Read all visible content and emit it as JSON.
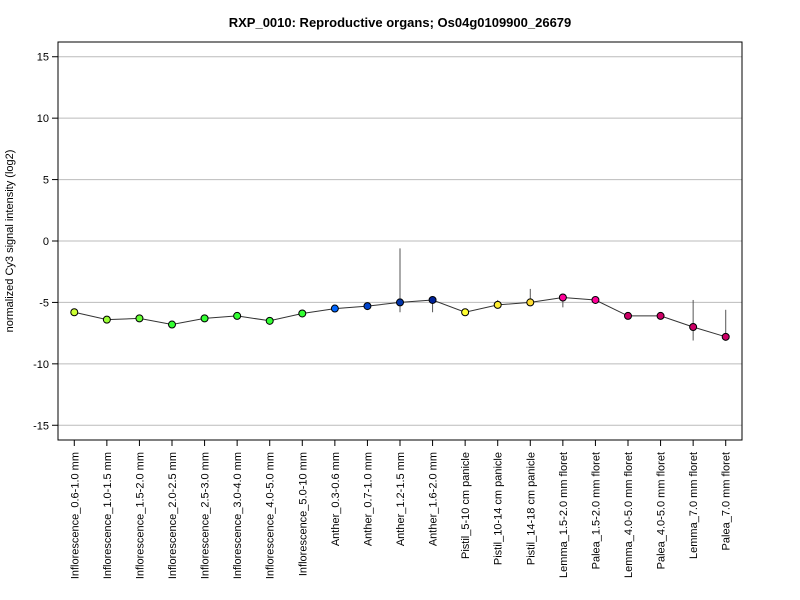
{
  "chart_data": {
    "type": "line",
    "title": "RXP_0010: Reproductive organs; Os04g0109900_26679",
    "xlabel": "",
    "ylabel": "normalized Cy3 signal intensity (log2)",
    "ylim": [
      -16.2,
      16.2
    ],
    "yticks": [
      -15,
      -10,
      -5,
      0,
      5,
      10,
      15
    ],
    "grid": true,
    "line_color": "#333333",
    "categories": [
      "Inflorescence_0.6-1.0 mm",
      "Inflorescence_1.0-1.5 mm",
      "Inflorescence_1.5-2.0 mm",
      "Inflorescence_2.0-2.5 mm",
      "Inflorescence_2.5-3.0 mm",
      "Inflorescence_3.0-4.0 mm",
      "Inflorescence_4.0-5.0 mm",
      "Inflorescence_5.0-10 mm",
      "Anther_0.3-0.6 mm",
      "Anther_0.7-1.0 mm",
      "Anther_1.2-1.5 mm",
      "Anther_1.6-2.0 mm",
      "Pistil_5-10 cm panicle",
      "Pistil_10-14 cm panicle",
      "Pistil_14-18 cm panicle",
      "Lemma_1.5-2.0 mm floret",
      "Palea_1.5-2.0 mm floret",
      "Lemma_4.0-5.0 mm floret",
      "Palea_4.0-5.0 mm floret",
      "Lemma_7.0 mm floret",
      "Palea_7.0 mm floret"
    ],
    "values": [
      -5.8,
      -6.4,
      -6.3,
      -6.8,
      -6.3,
      -6.1,
      -6.5,
      -5.9,
      -5.5,
      -5.3,
      -5.0,
      -4.8,
      -5.8,
      -5.2,
      -5.0,
      -4.6,
      -4.8,
      -6.1,
      -6.1,
      -7.0,
      -7.8
    ],
    "error_low": [
      -5.8,
      -6.4,
      -6.3,
      -6.8,
      -6.3,
      -6.1,
      -6.5,
      -5.9,
      -5.5,
      -5.5,
      -5.8,
      -5.8,
      -5.8,
      -5.5,
      -5.3,
      -5.4,
      -4.8,
      -6.1,
      -6.1,
      -8.1,
      -8.0
    ],
    "error_high": [
      -5.8,
      -6.4,
      -6.3,
      -6.8,
      -6.3,
      -6.1,
      -6.5,
      -5.9,
      -5.5,
      -5.2,
      -0.6,
      -4.7,
      -5.8,
      -4.8,
      -3.9,
      -4.5,
      -4.8,
      -6.1,
      -6.1,
      -4.8,
      -5.6
    ],
    "point_colors": [
      "#ccff33",
      "#99ff33",
      "#66ff33",
      "#33ff33",
      "#33ff33",
      "#33ff33",
      "#33ff33",
      "#33ff33",
      "#0066ff",
      "#0044cc",
      "#0033aa",
      "#002299",
      "#ffff33",
      "#ffee33",
      "#ffdd33",
      "#ff0099",
      "#ff0099",
      "#cc0066",
      "#cc0066",
      "#cc0066",
      "#cc0066"
    ]
  }
}
